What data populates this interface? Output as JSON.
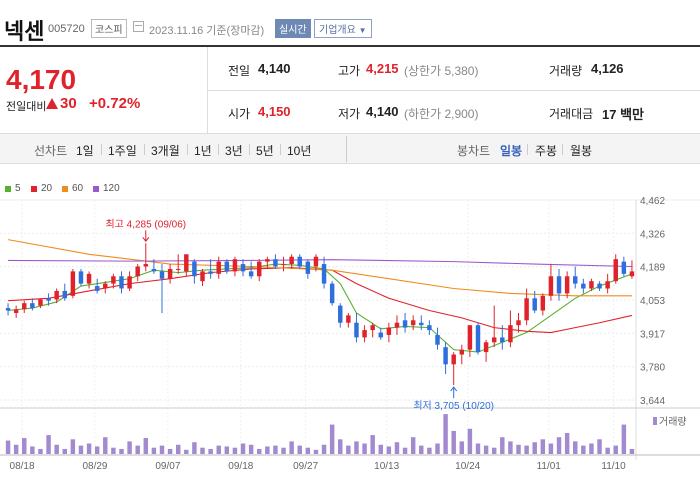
{
  "header": {
    "name": "넥센",
    "code": "005720",
    "market": "코스피",
    "date_label": "2023.11.16 기준(장마감)",
    "realtime_btn": "실시간",
    "corp_btn": "기업개요"
  },
  "quote": {
    "price": "4,170",
    "change_label": "전일대비",
    "change": "30",
    "change_pct": "+0.72%"
  },
  "stats": {
    "prev_label": "전일",
    "prev": "4,140",
    "high_label": "고가",
    "high": "4,215",
    "upper_label": "(상한가 5,380)",
    "vol_label": "거래량",
    "vol": "4,126",
    "open_label": "시가",
    "open": "4,150",
    "low_label": "저가",
    "low": "4,140",
    "lower_label": "(하한가 2,900)",
    "amt_label": "거래대금",
    "amt": "17 백만"
  },
  "toolbar": {
    "line_label": "선차트",
    "periods": [
      "1일",
      "1주일",
      "3개월",
      "1년",
      "3년",
      "5년",
      "10년"
    ],
    "candle_label": "봉차트",
    "candle_types": [
      "일봉",
      "주봉",
      "월봉"
    ],
    "candle_active": "일봉"
  },
  "legend": [
    {
      "label": "5",
      "color": "#58b031"
    },
    {
      "label": "20",
      "color": "#e0222b"
    },
    {
      "label": "60",
      "color": "#f08c1e"
    },
    {
      "label": "120",
      "color": "#9b59d0"
    }
  ],
  "annotations": {
    "high": "최고 4,285 (09/06)",
    "low": "최저 3,705 (10/20)"
  },
  "volume_label": "거래량",
  "colors": {
    "up": "#e0222b",
    "down": "#2f6fdb"
  },
  "chart_data": {
    "type": "candlestick",
    "y_ticks": [
      4462,
      4326,
      4189,
      4053,
      3917,
      3780,
      3644
    ],
    "x_ticks": [
      "08/18",
      "08/29",
      "09/07",
      "09/18",
      "09/27",
      "10/13",
      "10/24",
      "11/01",
      "11/10"
    ],
    "ohlc": [
      [
        4020,
        4040,
        3990,
        4010
      ],
      [
        4000,
        4030,
        3980,
        4015
      ],
      [
        4015,
        4050,
        4000,
        4040
      ],
      [
        4040,
        4060,
        4010,
        4020
      ],
      [
        4030,
        4060,
        4020,
        4055
      ],
      [
        4060,
        4080,
        4030,
        4050
      ],
      [
        4055,
        4100,
        4040,
        4090
      ],
      [
        4090,
        4120,
        4050,
        4060
      ],
      [
        4070,
        4180,
        4060,
        4170
      ],
      [
        4170,
        4180,
        4110,
        4120
      ],
      [
        4120,
        4170,
        4100,
        4160
      ],
      [
        4110,
        4140,
        4080,
        4090
      ],
      [
        4100,
        4130,
        4080,
        4120
      ],
      [
        4120,
        4160,
        4100,
        4150
      ],
      [
        4150,
        4170,
        4080,
        4100
      ],
      [
        4100,
        4170,
        4090,
        4150
      ],
      [
        4150,
        4200,
        4130,
        4190
      ],
      [
        4190,
        4285,
        4170,
        4200
      ],
      [
        4180,
        4220,
        4160,
        4170
      ],
      [
        4170,
        4200,
        4000,
        4140
      ],
      [
        4140,
        4200,
        4120,
        4180
      ],
      [
        4180,
        4240,
        4160,
        4180
      ],
      [
        4170,
        4240,
        4150,
        4240
      ],
      [
        4210,
        4220,
        4120,
        4150
      ],
      [
        4130,
        4180,
        4110,
        4170
      ],
      [
        4170,
        4220,
        4140,
        4160
      ],
      [
        4160,
        4230,
        4140,
        4210
      ],
      [
        4210,
        4220,
        4160,
        4170
      ],
      [
        4170,
        4230,
        4150,
        4220
      ],
      [
        4200,
        4220,
        4150,
        4170
      ],
      [
        4170,
        4210,
        4140,
        4150
      ],
      [
        4150,
        4220,
        4130,
        4210
      ],
      [
        4210,
        4230,
        4180,
        4220
      ],
      [
        4220,
        4240,
        4180,
        4190
      ],
      [
        4200,
        4230,
        4170,
        4200
      ],
      [
        4200,
        4240,
        4180,
        4230
      ],
      [
        4230,
        4240,
        4180,
        4190
      ],
      [
        4210,
        4220,
        4140,
        4160
      ],
      [
        4190,
        4240,
        4170,
        4230
      ],
      [
        4200,
        4230,
        4100,
        4120
      ],
      [
        4120,
        4130,
        4030,
        4040
      ],
      [
        4030,
        4040,
        3940,
        3960
      ],
      [
        3960,
        4000,
        3940,
        3990
      ],
      [
        3960,
        4000,
        3880,
        3900
      ],
      [
        3900,
        3950,
        3880,
        3930
      ],
      [
        3930,
        3960,
        3900,
        3950
      ],
      [
        3920,
        3940,
        3890,
        3900
      ],
      [
        3910,
        3960,
        3880,
        3940
      ],
      [
        3940,
        3990,
        3910,
        3960
      ],
      [
        3970,
        4000,
        3920,
        3940
      ],
      [
        3950,
        3990,
        3930,
        3970
      ],
      [
        3960,
        3990,
        3930,
        3950
      ],
      [
        3950,
        3970,
        3910,
        3930
      ],
      [
        3910,
        3940,
        3850,
        3870
      ],
      [
        3860,
        3880,
        3750,
        3790
      ],
      [
        3790,
        3840,
        3705,
        3830
      ],
      [
        3830,
        3870,
        3790,
        3850
      ],
      [
        3850,
        3950,
        3820,
        3950
      ],
      [
        3950,
        3960,
        3830,
        3840
      ],
      [
        3840,
        3890,
        3800,
        3880
      ],
      [
        3880,
        4030,
        3860,
        3900
      ],
      [
        3900,
        3950,
        3850,
        3880
      ],
      [
        3880,
        4010,
        3860,
        3950
      ],
      [
        3950,
        4000,
        3920,
        3970
      ],
      [
        3970,
        4100,
        3950,
        4060
      ],
      [
        4060,
        4090,
        4000,
        4010
      ],
      [
        4010,
        4080,
        3990,
        4070
      ],
      [
        4070,
        4200,
        4050,
        4150
      ],
      [
        4150,
        4180,
        4050,
        4080
      ],
      [
        4080,
        4170,
        4060,
        4150
      ],
      [
        4150,
        4190,
        4100,
        4120
      ],
      [
        4120,
        4140,
        4080,
        4100
      ],
      [
        4100,
        4140,
        4090,
        4130
      ],
      [
        4120,
        4130,
        4090,
        4100
      ],
      [
        4100,
        4160,
        4080,
        4130
      ],
      [
        4130,
        4240,
        4120,
        4220
      ],
      [
        4210,
        4230,
        4150,
        4160
      ],
      [
        4150,
        4215,
        4140,
        4170
      ]
    ],
    "volume": [
      0.32,
      0.22,
      0.38,
      0.18,
      0.12,
      0.45,
      0.22,
      0.12,
      0.35,
      0.2,
      0.25,
      0.18,
      0.4,
      0.15,
      0.12,
      0.3,
      0.2,
      0.38,
      0.15,
      0.2,
      0.12,
      0.22,
      0.1,
      0.28,
      0.15,
      0.12,
      0.2,
      0.18,
      0.15,
      0.25,
      0.22,
      0.12,
      0.18,
      0.2,
      0.15,
      0.3,
      0.2,
      0.15,
      0.1,
      0.22,
      0.7,
      0.35,
      0.2,
      0.3,
      0.25,
      0.45,
      0.22,
      0.18,
      0.28,
      0.15,
      0.4,
      0.2,
      0.15,
      0.25,
      0.95,
      0.55,
      0.3,
      0.6,
      0.25,
      0.2,
      0.15,
      0.4,
      0.3,
      0.22,
      0.2,
      0.28,
      0.35,
      0.25,
      0.4,
      0.5,
      0.3,
      0.2,
      0.25,
      0.35,
      0.15,
      0.2,
      0.7,
      0.12
    ],
    "ma": {
      "5": [
        [
          0,
          4010
        ],
        [
          3,
          4020
        ],
        [
          6,
          4045
        ],
        [
          9,
          4110
        ],
        [
          12,
          4125
        ],
        [
          15,
          4140
        ],
        [
          18,
          4175
        ],
        [
          21,
          4165
        ],
        [
          24,
          4175
        ],
        [
          27,
          4180
        ],
        [
          30,
          4185
        ],
        [
          33,
          4200
        ],
        [
          36,
          4195
        ],
        [
          39,
          4180
        ],
        [
          41,
          4120
        ],
        [
          43,
          4000
        ],
        [
          46,
          3935
        ],
        [
          49,
          3945
        ],
        [
          52,
          3940
        ],
        [
          55,
          3850
        ],
        [
          58,
          3840
        ],
        [
          61,
          3880
        ],
        [
          64,
          3920
        ],
        [
          67,
          3990
        ],
        [
          70,
          4060
        ],
        [
          73,
          4110
        ],
        [
          77,
          4160
        ]
      ],
      "20": [
        [
          0,
          4050
        ],
        [
          5,
          4060
        ],
        [
          10,
          4090
        ],
        [
          15,
          4120
        ],
        [
          20,
          4140
        ],
        [
          25,
          4165
        ],
        [
          30,
          4180
        ],
        [
          35,
          4185
        ],
        [
          40,
          4175
        ],
        [
          43,
          4120
        ],
        [
          47,
          4060
        ],
        [
          52,
          4010
        ],
        [
          56,
          3980
        ],
        [
          60,
          3940
        ],
        [
          64,
          3925
        ],
        [
          67,
          3920
        ],
        [
          70,
          3940
        ],
        [
          73,
          3960
        ],
        [
          77,
          3990
        ]
      ],
      "60": [
        [
          0,
          4300
        ],
        [
          10,
          4240
        ],
        [
          20,
          4200
        ],
        [
          30,
          4190
        ],
        [
          40,
          4175
        ],
        [
          47,
          4140
        ],
        [
          55,
          4100
        ],
        [
          62,
          4080
        ],
        [
          70,
          4070
        ],
        [
          77,
          4070
        ]
      ],
      "120": [
        [
          0,
          4215
        ],
        [
          15,
          4212
        ],
        [
          30,
          4215
        ],
        [
          40,
          4218
        ],
        [
          55,
          4210
        ],
        [
          65,
          4200
        ],
        [
          77,
          4190
        ]
      ]
    }
  }
}
